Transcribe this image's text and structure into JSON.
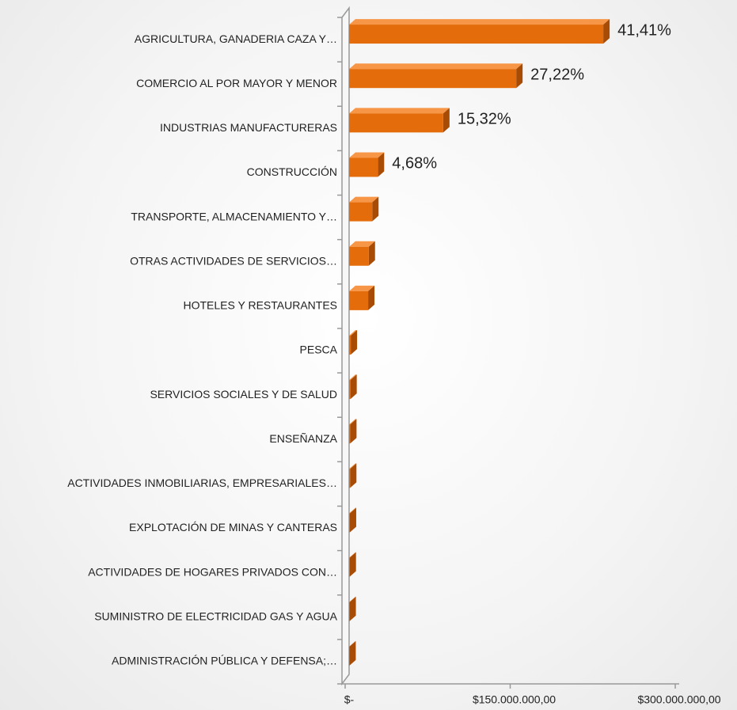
{
  "chart_data": {
    "type": "bar3d-horizontal",
    "categories": [
      "AGRICULTURA, GANADERIA CAZA Y…",
      "COMERCIO AL POR MAYOR Y MENOR",
      "INDUSTRIAS MANUFACTURERAS",
      "CONSTRUCCIÓN",
      "TRANSPORTE, ALMACENAMIENTO Y…",
      "OTRAS ACTIVIDADES DE SERVICIOS…",
      "HOTELES Y RESTAURANTES",
      "PESCA",
      "SERVICIOS SOCIALES Y DE SALUD",
      "ENSEÑANZA",
      "ACTIVIDADES INMOBILIARIAS, EMPRESARIALES…",
      "EXPLOTACIÓN DE MINAS Y CANTERAS",
      "ACTIVIDADES DE HOGARES PRIVADOS CON…",
      "SUMINISTRO DE ELECTRICIDAD GAS Y AGUA",
      "ADMINISTRACIÓN PÚBLICA Y DEFENSA;…"
    ],
    "values": [
      231000000,
      151900000,
      85500000,
      26100000,
      21000000,
      17800000,
      17300000,
      1500000,
      1200000,
      1000000,
      900000,
      700000,
      500000,
      400000,
      300000
    ],
    "value_labels": [
      "41,41%",
      "27,22%",
      "15,32%",
      "4,68%",
      null,
      null,
      null,
      null,
      null,
      null,
      null,
      null,
      null,
      null,
      null
    ],
    "color": "#e46c0a",
    "xlim": [
      0,
      300000000
    ],
    "xticks": [
      {
        "value": 0,
        "label": "$-"
      },
      {
        "value": 150000000,
        "label": "$150.000.000,00"
      },
      {
        "value": 300000000,
        "label": "$300.000.000,00"
      }
    ]
  }
}
